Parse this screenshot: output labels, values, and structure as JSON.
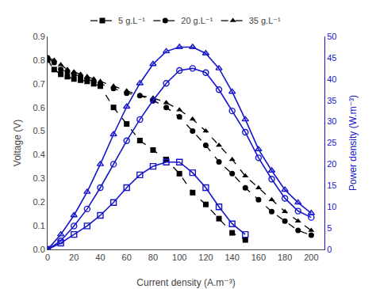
{
  "chart_data": {
    "type": "line",
    "xlabel": "Current density (A.m⁻³)",
    "ylabel": "Voltage (V)",
    "y2label": "Power density (W.m⁻³)",
    "xlim": [
      0,
      210
    ],
    "ylim": [
      0,
      0.9
    ],
    "y2lim": [
      0,
      50
    ],
    "xticks": [
      0,
      20,
      40,
      60,
      80,
      100,
      120,
      140,
      160,
      180,
      200
    ],
    "yticks": [
      {
        "value": 0,
        "label": "0.0"
      },
      0.1,
      0.2,
      0.3,
      0.4,
      0.5,
      0.6,
      0.7,
      0.8,
      0.9
    ],
    "y2ticks": [
      0,
      5,
      10,
      15,
      20,
      25,
      30,
      35,
      40,
      45,
      50
    ],
    "grid": false,
    "legend": "top",
    "series": [
      {
        "name": "5 g.L⁻¹",
        "color": "#000000",
        "marker": "square",
        "line_style": "dash",
        "x": [
          0,
          5,
          10,
          15,
          20,
          25,
          30,
          35,
          40,
          50,
          60,
          70,
          80,
          90,
          100,
          110,
          120,
          130,
          140,
          150
        ],
        "values": [
          0.8,
          0.76,
          0.74,
          0.73,
          0.72,
          0.715,
          0.71,
          0.7,
          0.69,
          0.6,
          0.53,
          0.46,
          0.42,
          0.38,
          0.32,
          0.24,
          0.19,
          0.13,
          0.07,
          0.04
        ]
      },
      {
        "name": "20 g.L⁻¹",
        "color": "#000000",
        "marker": "circle",
        "line_style": "dash",
        "x": [
          0,
          5,
          10,
          15,
          20,
          25,
          30,
          35,
          40,
          50,
          60,
          70,
          80,
          90,
          100,
          110,
          120,
          130,
          140,
          150,
          160,
          170,
          180,
          190,
          200
        ],
        "values": [
          0.81,
          0.79,
          0.76,
          0.75,
          0.74,
          0.73,
          0.72,
          0.71,
          0.7,
          0.68,
          0.66,
          0.65,
          0.63,
          0.6,
          0.56,
          0.5,
          0.44,
          0.37,
          0.32,
          0.26,
          0.21,
          0.16,
          0.12,
          0.08,
          0.06
        ]
      },
      {
        "name": "35 g.L⁻¹",
        "color": "#000000",
        "marker": "triangle-up",
        "line_style": "dash",
        "x": [
          0,
          5,
          10,
          15,
          20,
          25,
          30,
          35,
          40,
          50,
          60,
          70,
          80,
          90,
          100,
          110,
          120,
          130,
          140,
          150,
          160,
          170,
          180,
          190,
          200
        ],
        "values": [
          0.81,
          0.8,
          0.78,
          0.76,
          0.75,
          0.74,
          0.73,
          0.72,
          0.71,
          0.69,
          0.67,
          0.65,
          0.64,
          0.62,
          0.59,
          0.55,
          0.5,
          0.44,
          0.38,
          0.31,
          0.26,
          0.21,
          0.16,
          0.12,
          0.08
        ]
      },
      {
        "axis": "y2",
        "color": "#1515cc",
        "marker": "square-open",
        "line_style": "solid",
        "x": [
          0,
          10,
          20,
          30,
          40,
          50,
          60,
          70,
          80,
          90,
          100,
          110,
          120,
          130,
          140,
          150
        ],
        "values": [
          0.0,
          1.5,
          3.5,
          5.5,
          8.0,
          11.0,
          14.5,
          17.5,
          19.5,
          20.5,
          20.5,
          18.0,
          14.5,
          10.0,
          6.0,
          3.5
        ]
      },
      {
        "axis": "y2",
        "color": "#1515cc",
        "marker": "circle-open",
        "line_style": "solid",
        "x": [
          0,
          10,
          20,
          30,
          40,
          50,
          60,
          70,
          80,
          90,
          100,
          110,
          120,
          130,
          140,
          150,
          160,
          170,
          180,
          190,
          200
        ],
        "values": [
          0.0,
          2.0,
          5.5,
          9.5,
          14.5,
          20.0,
          25.5,
          30.5,
          35.0,
          39.0,
          42.0,
          42.5,
          41.5,
          37.5,
          32.5,
          27.5,
          21.5,
          16.5,
          12.0,
          9.0,
          7.5
        ]
      },
      {
        "axis": "y2",
        "color": "#1515cc",
        "marker": "triangle-up-open",
        "line_style": "solid",
        "x": [
          0,
          10,
          20,
          30,
          40,
          50,
          60,
          70,
          80,
          90,
          100,
          110,
          120,
          130,
          140,
          150,
          160,
          170,
          180,
          190,
          200
        ],
        "values": [
          0.0,
          3.5,
          8.0,
          13.5,
          20.0,
          27.0,
          33.5,
          39.0,
          43.5,
          46.5,
          47.5,
          47.5,
          46.0,
          42.5,
          37.0,
          30.5,
          23.5,
          18.5,
          14.0,
          11.0,
          8.5
        ]
      }
    ]
  }
}
